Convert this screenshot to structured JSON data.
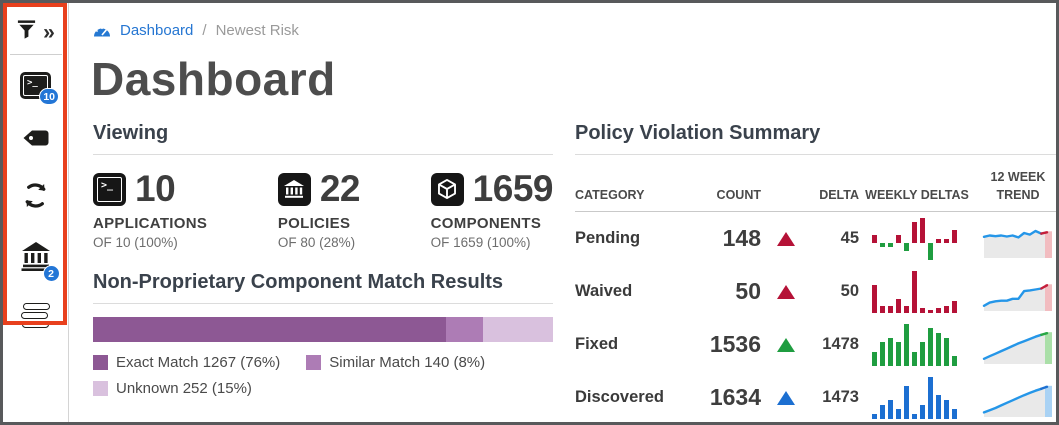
{
  "sidebar": {
    "collapse_glyph": "»",
    "terminal_glyph": ">_",
    "items": [
      {
        "name": "filter"
      },
      {
        "name": "applications",
        "badge": "10"
      },
      {
        "name": "tag"
      },
      {
        "name": "refresh"
      },
      {
        "name": "organizations",
        "badge": "2"
      },
      {
        "name": "levels"
      }
    ],
    "badges": {
      "applications": "10",
      "organizations": "2"
    }
  },
  "breadcrumb": {
    "link": "Dashboard",
    "separator": "/",
    "current": "Newest Risk"
  },
  "page": {
    "title": "Dashboard"
  },
  "viewing": {
    "heading": "Viewing",
    "stats": [
      {
        "icon": "terminal-icon",
        "value": "10",
        "label": "APPLICATIONS",
        "sub": "OF 10 (100%)"
      },
      {
        "icon": "bank-icon",
        "value": "22",
        "label": "POLICIES",
        "sub": "OF 80 (28%)"
      },
      {
        "icon": "cube-icon",
        "value": "1659",
        "label": "COMPONENTS",
        "sub": "OF 1659 (100%)"
      }
    ]
  },
  "match_results": {
    "heading": "Non-Proprietary Component Match Results",
    "segments": [
      {
        "label": "Exact Match 1267 (76%)",
        "percent": 76,
        "color": "#8d5894"
      },
      {
        "label": "Similar Match 140 (8%)",
        "percent": 8,
        "color": "#ad7cb5"
      },
      {
        "label": "Unknown 252 (15%)",
        "percent": 15,
        "color": "#d9c1de"
      }
    ]
  },
  "violation_summary": {
    "heading": "Policy Violation Summary",
    "columns": [
      "CATEGORY",
      "COUNT",
      "DELTA",
      "WEEKLY DELTAS",
      "12 WEEK TREND"
    ],
    "rows": [
      {
        "category": "Pending",
        "count": "148",
        "delta": "45",
        "delta_color": "#b51237",
        "bar_pos_color": "#b51237",
        "bar_neg_color": "#1f9d40",
        "weekly_deltas": [
          2,
          -1,
          -1,
          2,
          -2,
          5,
          6,
          -4,
          1,
          1,
          3
        ],
        "trend": [
          6.0,
          6.4,
          6.2,
          6.4,
          6.1,
          6.4,
          5.8,
          7.2,
          6.7,
          7.8,
          7.0,
          7.4
        ],
        "trend_tip_color": "#c41e3a",
        "trend_tip_fill": "#f2bcc0"
      },
      {
        "category": "Waived",
        "count": "50",
        "delta": "50",
        "delta_color": "#b51237",
        "bar_pos_color": "#b51237",
        "bar_neg_color": "#1f9d40",
        "weekly_deltas": [
          6,
          1.5,
          1.5,
          3,
          1.5,
          9,
          1,
          0.5,
          1,
          1.5,
          2.5
        ],
        "trend": [
          1.0,
          2.0,
          2.4,
          2.6,
          2.6,
          3.2,
          3.2,
          5.6,
          5.8,
          6.1,
          6.4,
          7.4
        ],
        "trend_tip_color": "#c41e3a",
        "trend_tip_fill": "#f2bcc0"
      },
      {
        "category": "Fixed",
        "count": "1536",
        "delta": "1478",
        "delta_color": "#1f9d40",
        "bar_pos_color": "#1f9d40",
        "bar_neg_color": "#1f9d40",
        "weekly_deltas": [
          3,
          5,
          6,
          5,
          9,
          3,
          5,
          8,
          7,
          6,
          2
        ],
        "trend": [
          1.0,
          1.8,
          2.6,
          3.4,
          4.2,
          5.0,
          5.8,
          6.5,
          7.2,
          7.9,
          8.5,
          9.0
        ],
        "trend_tip_color": "#28a745",
        "trend_tip_fill": "#aadfa8"
      },
      {
        "category": "Discovered",
        "count": "1634",
        "delta": "1473",
        "delta_color": "#1c6fd1",
        "bar_pos_color": "#1c6fd1",
        "bar_neg_color": "#1c6fd1",
        "weekly_deltas": [
          1,
          3,
          4,
          2,
          7,
          1,
          3,
          9,
          5,
          4,
          2
        ],
        "trend": [
          0.8,
          1.5,
          2.2,
          3.0,
          3.8,
          4.6,
          5.4,
          6.2,
          6.9,
          7.6,
          8.2,
          8.8
        ],
        "trend_tip_color": "#1c6fd1",
        "trend_tip_fill": "#a9d2f4"
      }
    ],
    "trend_line_color": "#2596e8",
    "trend_area_color": "#e9e9e9"
  }
}
